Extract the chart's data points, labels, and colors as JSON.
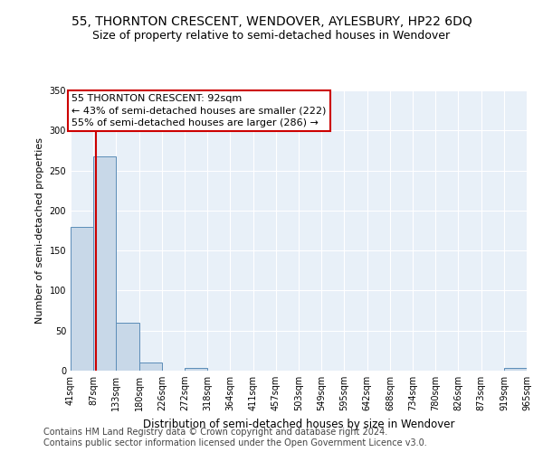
{
  "title": "55, THORNTON CRESCENT, WENDOVER, AYLESBURY, HP22 6DQ",
  "subtitle": "Size of property relative to semi-detached houses in Wendover",
  "xlabel": "Distribution of semi-detached houses by size in Wendover",
  "ylabel": "Number of semi-detached properties",
  "footer_line1": "Contains HM Land Registry data © Crown copyright and database right 2024.",
  "footer_line2": "Contains public sector information licensed under the Open Government Licence v3.0.",
  "bar_edges": [
    41,
    87,
    133,
    180,
    226,
    272,
    318,
    364,
    411,
    457,
    503,
    549,
    595,
    642,
    688,
    734,
    780,
    826,
    873,
    919,
    965
  ],
  "bar_values": [
    180,
    268,
    60,
    10,
    0,
    3,
    0,
    0,
    0,
    0,
    0,
    0,
    0,
    0,
    0,
    0,
    0,
    0,
    0,
    3,
    0
  ],
  "bar_color": "#c8d8e8",
  "bar_edgecolor": "#5b8db8",
  "subject_size": 92,
  "annotation_title": "55 THORNTON CRESCENT: 92sqm",
  "annotation_line1": "← 43% of semi-detached houses are smaller (222)",
  "annotation_line2": "55% of semi-detached houses are larger (286) →",
  "annotation_box_color": "#ffffff",
  "annotation_box_edgecolor": "#cc0000",
  "vline_color": "#cc0000",
  "ylim": [
    0,
    350
  ],
  "yticks": [
    0,
    50,
    100,
    150,
    200,
    250,
    300,
    350
  ],
  "background_color": "#e8f0f8",
  "grid_color": "#ffffff",
  "title_fontsize": 10,
  "subtitle_fontsize": 9,
  "tick_label_fontsize": 7,
  "ylabel_fontsize": 8,
  "xlabel_fontsize": 8.5,
  "footer_fontsize": 7,
  "annotation_fontsize": 8
}
